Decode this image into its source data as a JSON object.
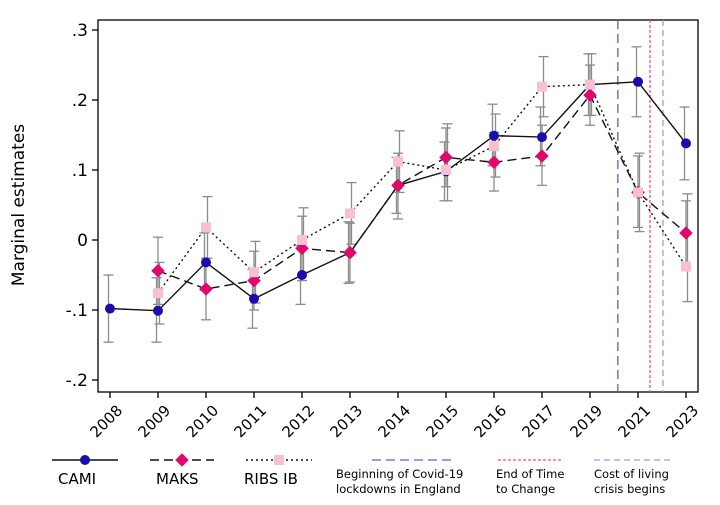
{
  "chart_data": {
    "type": "line",
    "ylabel": "Marginal estimates",
    "xlabel": "",
    "categories": [
      "2008",
      "2009",
      "2010",
      "2011",
      "2012",
      "2013",
      "2014",
      "2015",
      "2016",
      "2017",
      "2019",
      "2021",
      "2023"
    ],
    "ylim": [
      -0.2,
      0.3
    ],
    "yticks": [
      {
        "value": 0.3,
        "label": ".3"
      },
      {
        "value": 0.2,
        "label": ".2"
      },
      {
        "value": 0.1,
        "label": ".1"
      },
      {
        "value": 0.0,
        "label": "0"
      },
      {
        "value": -0.1,
        "label": "-.1"
      },
      {
        "value": -0.2,
        "label": "-.2"
      }
    ],
    "grid": false,
    "series": [
      {
        "name": "CAMI",
        "color": "#1a0dab",
        "marker": "circle",
        "dash": "solid",
        "values": [
          -0.098,
          -0.101,
          -0.032,
          -0.084,
          -0.05,
          -0.018,
          0.078,
          0.098,
          0.149,
          0.147,
          0.222,
          0.226,
          0.138
        ],
        "lower": [
          -0.146,
          -0.146,
          -0.072,
          -0.126,
          -0.092,
          -0.062,
          0.038,
          0.056,
          0.106,
          0.106,
          0.178,
          0.176,
          0.086
        ],
        "upper": [
          -0.05,
          -0.054,
          0.01,
          -0.042,
          -0.008,
          0.026,
          0.118,
          0.14,
          0.194,
          0.19,
          0.266,
          0.276,
          0.19
        ]
      },
      {
        "name": "MAKS",
        "color": "#e0086c",
        "marker": "diamond",
        "dash": "dashed",
        "values": [
          null,
          -0.044,
          -0.07,
          -0.058,
          -0.012,
          -0.018,
          0.078,
          0.118,
          0.111,
          0.12,
          0.207,
          0.068,
          0.01
        ],
        "lower": [
          null,
          -0.092,
          -0.114,
          -0.1,
          -0.058,
          -0.06,
          0.03,
          0.076,
          0.07,
          0.078,
          0.164,
          0.018,
          -0.034
        ],
        "upper": [
          null,
          0.004,
          -0.026,
          -0.016,
          0.034,
          0.024,
          0.124,
          0.16,
          0.154,
          0.164,
          0.25,
          0.12,
          0.056
        ]
      },
      {
        "name": "RIBS IB",
        "color": "#f8c0d0",
        "marker": "square",
        "dash": "dotted",
        "values": [
          null,
          -0.076,
          0.018,
          -0.046,
          0.0,
          0.038,
          0.112,
          0.1,
          0.134,
          0.219,
          0.222,
          0.068,
          -0.038
        ],
        "lower": [
          null,
          -0.12,
          -0.026,
          -0.09,
          -0.046,
          -0.006,
          0.068,
          0.056,
          0.09,
          0.176,
          0.178,
          0.012,
          -0.088
        ],
        "upper": [
          null,
          -0.032,
          0.062,
          -0.002,
          0.046,
          0.082,
          0.156,
          0.166,
          0.18,
          0.262,
          0.266,
          0.124,
          0.066
        ]
      }
    ],
    "reference_lines": [
      {
        "name": "Beginning of Covid-19 lockdowns in England",
        "label_lines": [
          "Beginning of Covid-19",
          "lockdowns in England"
        ],
        "x_between": [
          "2019",
          "2021"
        ],
        "fraction": 0.58,
        "color": "#5b5fd6",
        "dash": "long"
      },
      {
        "name": "End of Time to Change",
        "label_lines": [
          "End of Time",
          "to Change"
        ],
        "x_between": [
          "2021",
          "2023"
        ],
        "fraction": 0.25,
        "color": "#ff4b86",
        "dash": "short"
      },
      {
        "name": "Cost of living crisis begins",
        "label_lines": [
          "Cost of living",
          "crisis begins"
        ],
        "x_between": [
          "2021",
          "2023"
        ],
        "fraction": 0.52,
        "color": "#9b9be8",
        "dash": "medium"
      }
    ],
    "legend_placement": "bottom"
  }
}
